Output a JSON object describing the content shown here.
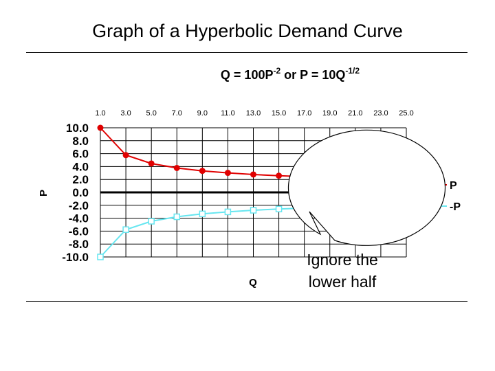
{
  "slide": {
    "title": "Graph of a Hyperbolic Demand Curve"
  },
  "chart_data": {
    "type": "line",
    "equation": {
      "base": "Q = 100P",
      "exp1": "-2",
      "mid": " or P = 10Q",
      "exp2": "-1/2"
    },
    "xlabel": "Q",
    "ylabel": "P",
    "x": [
      1,
      3,
      5,
      7,
      9,
      11,
      13,
      15,
      17,
      19,
      21,
      23,
      25
    ],
    "x_tick_labels": [
      "1.0",
      "3.0",
      "5.0",
      "7.0",
      "9.0",
      "11.0",
      "13.0",
      "15.0",
      "17.0",
      "19.0",
      "21.0",
      "23.0",
      "25.0"
    ],
    "xlim": [
      1,
      25
    ],
    "y_tick_labels": [
      "10.0",
      "8.0",
      "6.0",
      "4.0",
      "2.0",
      "0.0",
      "-2.0",
      "-4.0",
      "-6.0",
      "-8.0",
      "-10.0"
    ],
    "y_ticks": [
      10,
      8,
      6,
      4,
      2,
      0,
      -2,
      -4,
      -6,
      -8,
      -10
    ],
    "ylim": [
      -10,
      10
    ],
    "legend_position": "right",
    "series": [
      {
        "name": "P",
        "color": "#e00000",
        "marker": "filled-circle",
        "values": [
          10.0,
          5.77,
          4.47,
          3.78,
          3.33,
          3.02,
          2.77,
          2.58,
          2.43,
          2.29,
          2.18,
          2.09,
          2.0
        ]
      },
      {
        "name": "-P",
        "color": "#66e6f0",
        "marker": "hollow-square",
        "values": [
          -10.0,
          -5.77,
          -4.47,
          -3.78,
          -3.33,
          -3.02,
          -2.77,
          -2.58,
          -2.43,
          -2.29,
          -2.18,
          -2.09,
          -2.0
        ]
      }
    ],
    "annotation": {
      "line1": "Ignore the",
      "line2": "lower half"
    }
  }
}
